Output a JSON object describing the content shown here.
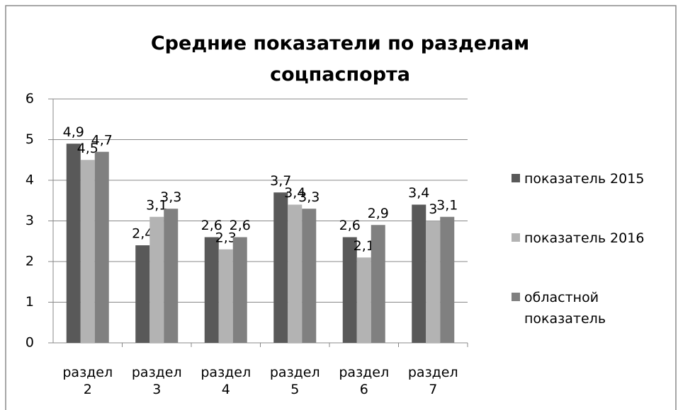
{
  "chart_data": {
    "type": "bar",
    "title": "Средние показатели по разделам соцпаспорта",
    "categories": [
      "раздел 2",
      "раздел 3",
      "раздел 4",
      "раздел 5",
      "раздел 6",
      "раздел 7"
    ],
    "series": [
      {
        "name": "показатель 2015",
        "color": "#595959",
        "values": [
          4.9,
          2.4,
          2.6,
          3.7,
          2.6,
          3.4
        ],
        "value_labels": [
          "4,9",
          "2,4",
          "2,6",
          "3,7",
          "2,6",
          "3,4"
        ]
      },
      {
        "name": "показатель 2016",
        "color": "#b3b3b3",
        "values": [
          4.5,
          3.1,
          2.3,
          3.4,
          2.1,
          3
        ],
        "value_labels": [
          "4,5",
          "3,1",
          "2,3",
          "3,4",
          "2,1",
          "3"
        ]
      },
      {
        "name": "областной показатель",
        "color": "#808080",
        "values": [
          4.7,
          3.3,
          2.6,
          3.3,
          2.9,
          3.1
        ],
        "value_labels": [
          "4,7",
          "3,3",
          "2,6",
          "3,3",
          "2,9",
          "3,1"
        ]
      }
    ],
    "ylim": [
      0,
      6
    ],
    "yticks": [
      0,
      1,
      2,
      3,
      4,
      5,
      6
    ],
    "grid": true,
    "legend": "right"
  }
}
